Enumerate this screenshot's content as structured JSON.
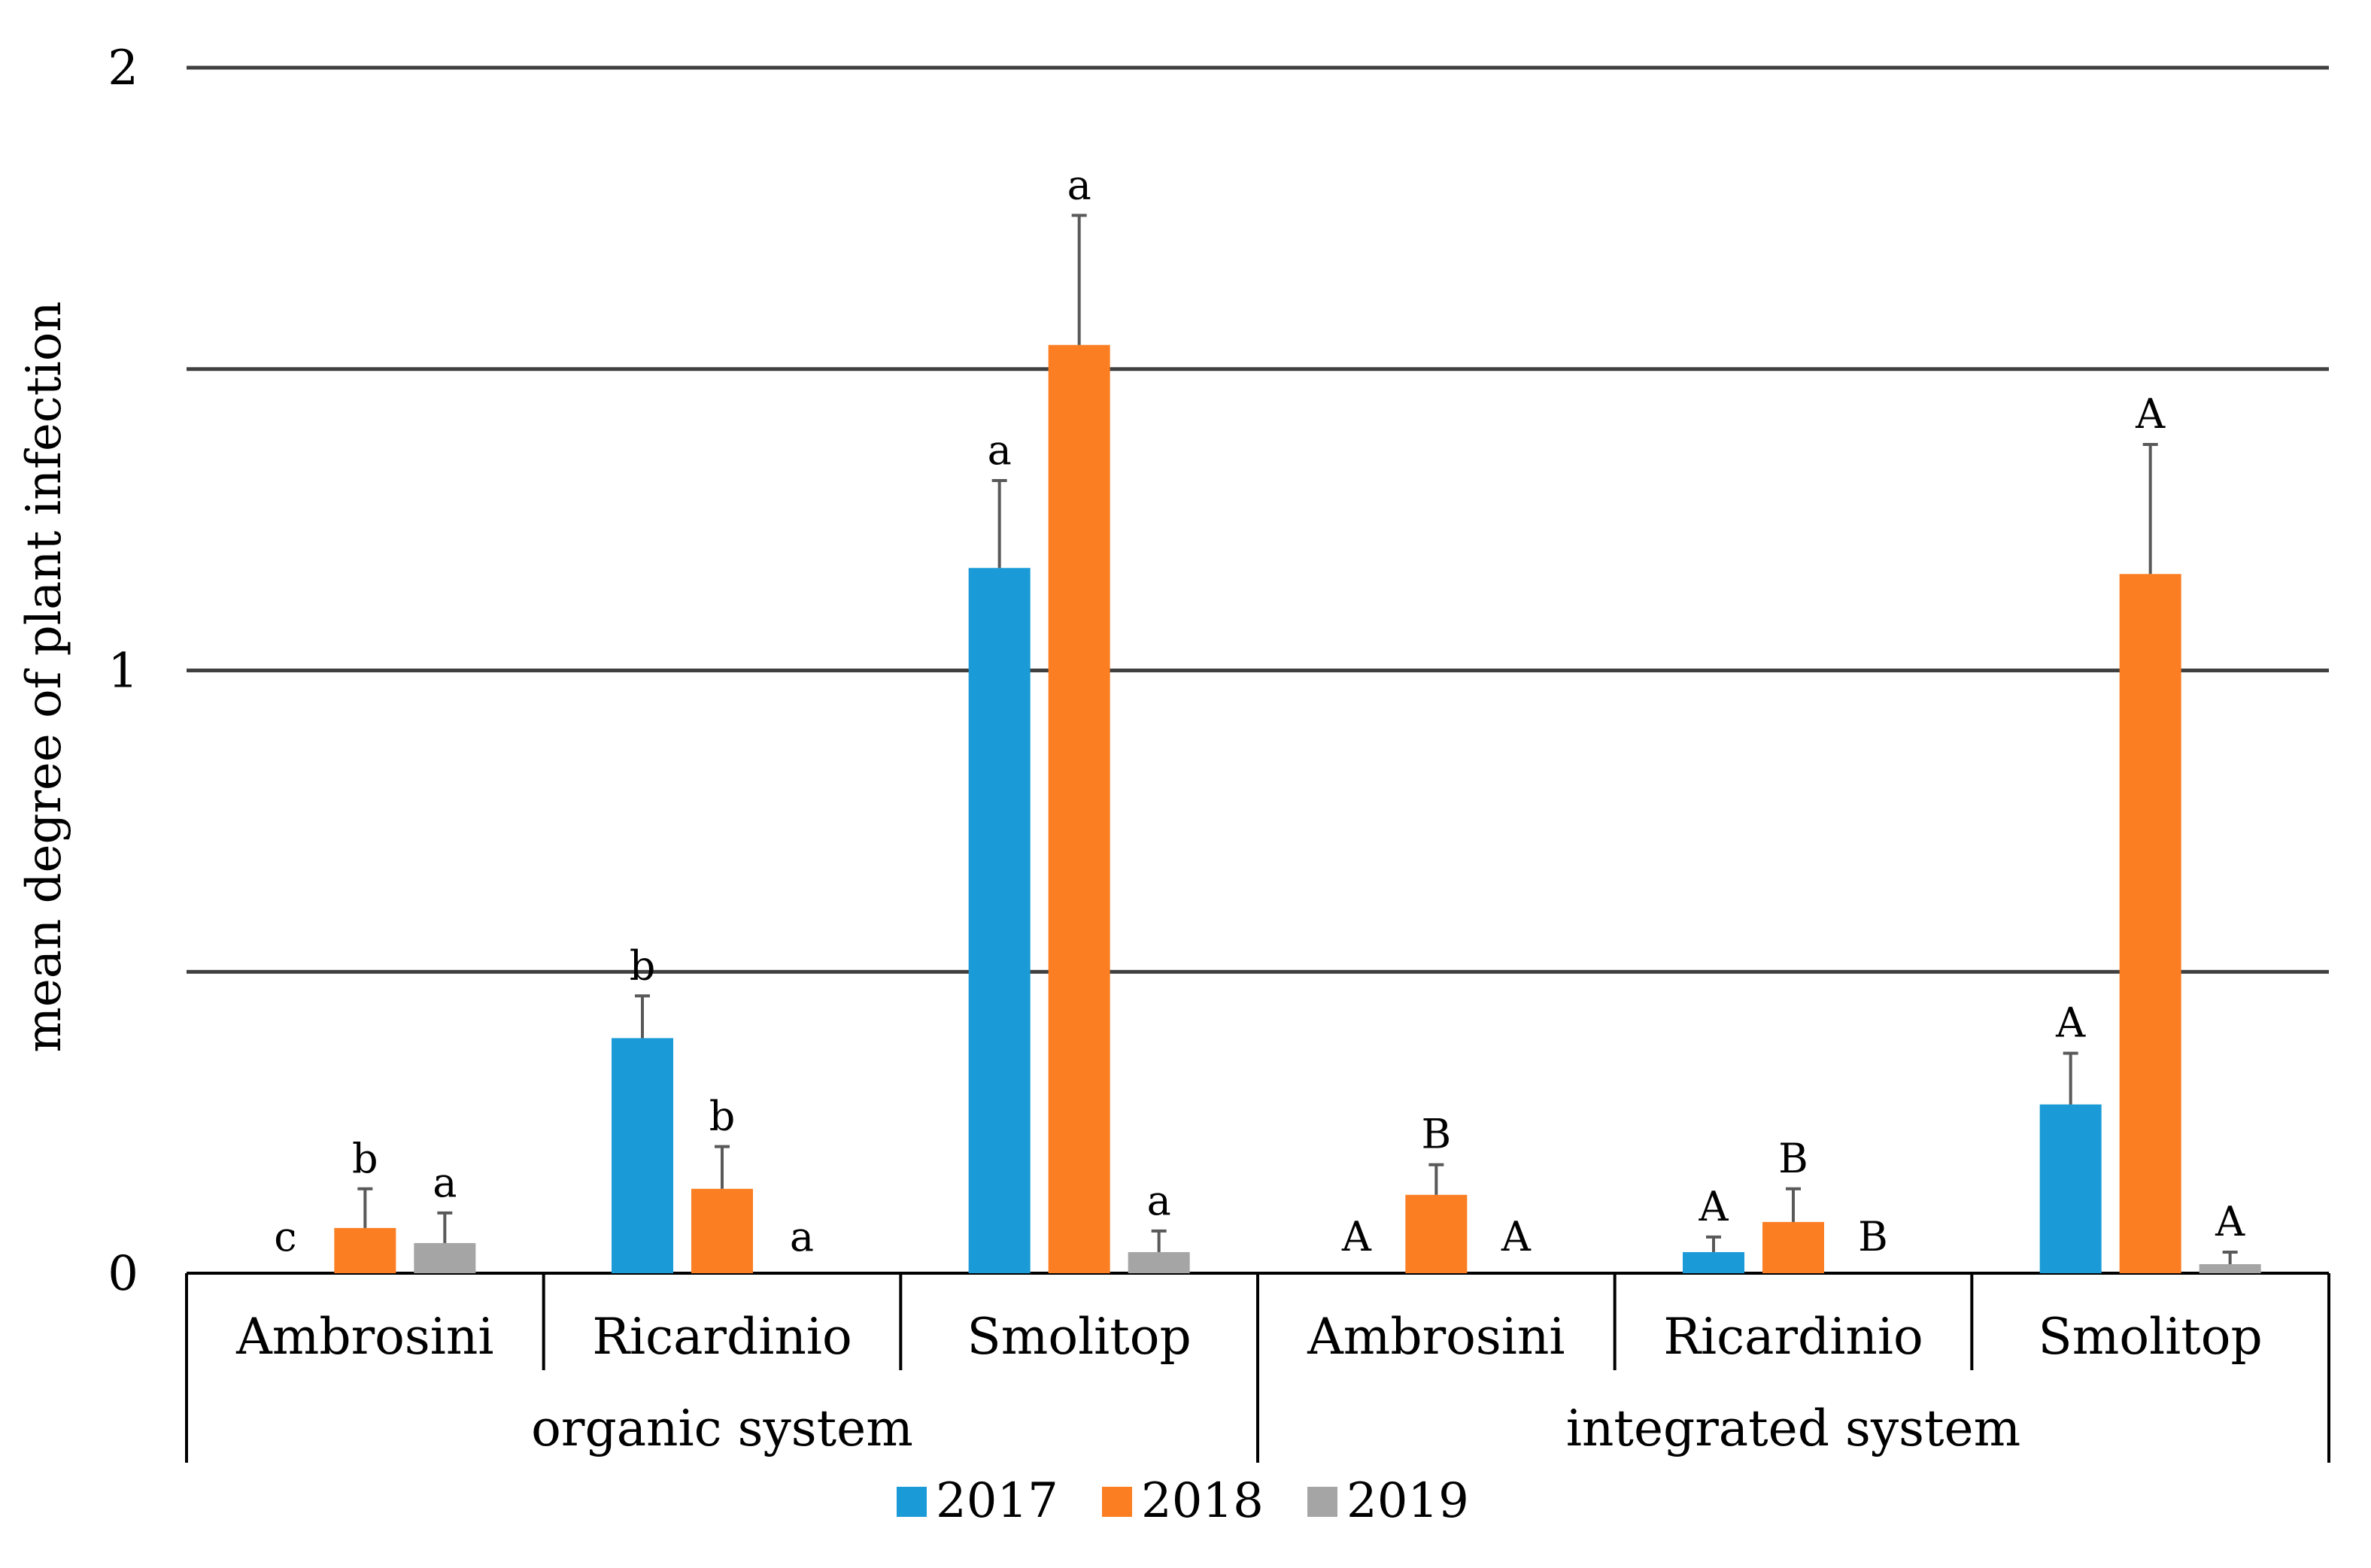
{
  "chart_data": {
    "type": "bar",
    "title": "",
    "xlabel": "",
    "ylabel": "mean degree of plant infection",
    "ylim": [
      0,
      2
    ],
    "yticks": [
      {
        "value": 0,
        "label": "0"
      },
      {
        "value": 1,
        "label": "1"
      },
      {
        "value": 2,
        "label": "2"
      }
    ],
    "gridlines": [
      0.5,
      1,
      1.5,
      2
    ],
    "groups": [
      {
        "label": "organic system",
        "categories": [
          "Ambrosini",
          "Ricardinio",
          "Smolitop"
        ]
      },
      {
        "label": "integrated system",
        "categories": [
          "Ambrosini",
          "Ricardinio",
          "Smolitop"
        ]
      }
    ],
    "categories": [
      "Ambrosini",
      "Ricardinio",
      "Smolitop",
      "Ambrosini",
      "Ricardinio",
      "Smolitop"
    ],
    "series": [
      {
        "name": "2017",
        "color": "#1a9ad6",
        "values": [
          0,
          0.39,
          1.17,
          0,
          0.035,
          0.28
        ],
        "errors": [
          0,
          0.07,
          0.145,
          0,
          0.025,
          0.085
        ],
        "letters": [
          "c",
          "b",
          "a",
          "A",
          "A",
          "A"
        ]
      },
      {
        "name": "2018",
        "color": "#fb7e23",
        "values": [
          0.075,
          0.14,
          1.54,
          0.13,
          0.085,
          1.16
        ],
        "errors": [
          0.065,
          0.07,
          0.215,
          0.05,
          0.055,
          0.215
        ],
        "letters": [
          "b",
          "b",
          "a",
          "B",
          "B",
          "A"
        ]
      },
      {
        "name": "2019",
        "color": "#a5a5a5",
        "values": [
          0.05,
          0,
          0.035,
          0,
          0,
          0.015
        ],
        "errors": [
          0.05,
          0,
          0.035,
          0,
          0,
          0.02
        ],
        "letters": [
          "a",
          "a",
          "a",
          "A",
          "B",
          "A"
        ]
      }
    ],
    "legend": {
      "position": "bottom-center"
    },
    "grid": true
  }
}
